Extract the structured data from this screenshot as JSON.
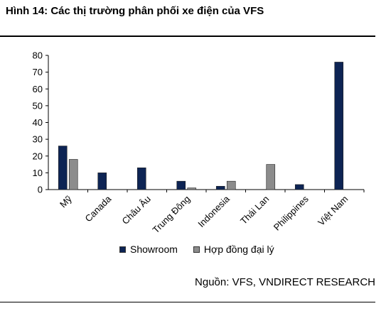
{
  "chart_title": "Hình 14: Các thị trường phân phối xe điện của VFS",
  "source": "Nguồn: VFS, VNDIRECT RESEARCH",
  "colors": {
    "showroom": "#0d2454",
    "dealer": "#8c8c8c"
  },
  "chart_data": {
    "type": "bar",
    "categories": [
      "Mỹ",
      "Canada",
      "Châu Âu",
      "Trung Đông",
      "Indonesia",
      "Thái Lan",
      "Philippines",
      "Việt Nam"
    ],
    "series": [
      {
        "name": "Showroom",
        "values": [
          26,
          10,
          13,
          5,
          2,
          0,
          3,
          76
        ]
      },
      {
        "name": "Hợp đồng đại lý",
        "values": [
          18,
          0,
          0,
          1,
          5,
          15,
          0,
          0
        ]
      }
    ],
    "yticks": [
      "0",
      "10",
      "20",
      "30",
      "40",
      "50",
      "60",
      "70",
      "80"
    ],
    "ylim": [
      0,
      80
    ],
    "grid": false,
    "legend_position": "bottom"
  }
}
